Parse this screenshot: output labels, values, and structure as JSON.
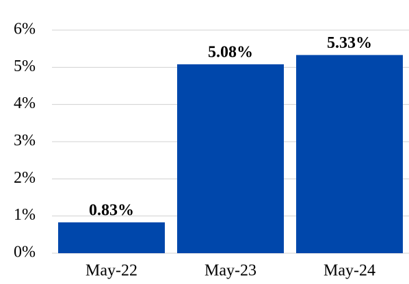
{
  "chart_data": {
    "type": "bar",
    "categories": [
      "May-22",
      "May-23",
      "May-24"
    ],
    "values": [
      0.83,
      5.08,
      5.33
    ],
    "value_labels": [
      "0.83%",
      "5.08%",
      "5.33%"
    ],
    "color": "#0047ab",
    "ylim": [
      0,
      6
    ],
    "yticks": [
      {
        "value": 0,
        "label": "0%"
      },
      {
        "value": 1,
        "label": "1%"
      },
      {
        "value": 2,
        "label": "2%"
      },
      {
        "value": 3,
        "label": "3%"
      },
      {
        "value": 4,
        "label": "4%"
      },
      {
        "value": 5,
        "label": "5%"
      },
      {
        "value": 6,
        "label": "6%"
      }
    ],
    "grid": true
  }
}
